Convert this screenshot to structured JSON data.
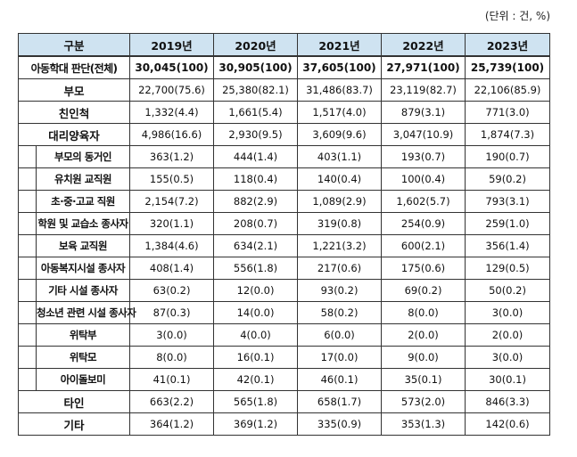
{
  "unit_label": "(단위 : 건, %)",
  "table": {
    "header": [
      "구분",
      "2019년",
      "2020년",
      "2021년",
      "2022년",
      "2023년"
    ],
    "total": {
      "label": "아동학대 판단(전체)",
      "values": [
        "30,045(100)",
        "30,905(100)",
        "37,605(100)",
        "27,971(100)",
        "25,739(100)"
      ]
    },
    "rows": [
      {
        "label": "부모",
        "values": [
          "22,700(75.6)",
          "25,380(82.1)",
          "31,486(83.7)",
          "23,119(82.7)",
          "22,106(85.9)"
        ]
      },
      {
        "label": "친인척",
        "values": [
          "1,332(4.4)",
          "1,661(5.4)",
          "1,517(4.0)",
          "879(3.1)",
          "771(3.0)"
        ]
      },
      {
        "label": "대리양육자",
        "values": [
          "4,986(16.6)",
          "2,930(9.5)",
          "3,609(9.6)",
          "3,047(10.9)",
          "1,874(7.3)"
        ],
        "children": [
          {
            "label": "부모의 동거인",
            "values": [
              "363(1.2)",
              "444(1.4)",
              "403(1.1)",
              "193(0.7)",
              "190(0.7)"
            ]
          },
          {
            "label": "유치원 교직원",
            "values": [
              "155(0.5)",
              "118(0.4)",
              "140(0.4)",
              "100(0.4)",
              "59(0.2)"
            ]
          },
          {
            "label": "초·중·고교 직원",
            "values": [
              "2,154(7.2)",
              "882(2.9)",
              "1,089(2.9)",
              "1,602(5.7)",
              "793(3.1)"
            ]
          },
          {
            "label": "학원 및 교습소 종사자",
            "values": [
              "320(1.1)",
              "208(0.7)",
              "319(0.8)",
              "254(0.9)",
              "259(1.0)"
            ]
          },
          {
            "label": "보육 교직원",
            "values": [
              "1,384(4.6)",
              "634(2.1)",
              "1,221(3.2)",
              "600(2.1)",
              "356(1.4)"
            ]
          },
          {
            "label": "아동복지시설 종사자",
            "values": [
              "408(1.4)",
              "556(1.8)",
              "217(0.6)",
              "175(0.6)",
              "129(0.5)"
            ]
          },
          {
            "label": "기타 시설 종사자",
            "values": [
              "63(0.2)",
              "12(0.0)",
              "93(0.2)",
              "69(0.2)",
              "50(0.2)"
            ]
          },
          {
            "label": "청소년 관련 시설 종사자",
            "values": [
              "87(0.3)",
              "14(0.0)",
              "58(0.2)",
              "8(0.0)",
              "3(0.0)"
            ]
          },
          {
            "label": "위탁부",
            "values": [
              "3(0.0)",
              "4(0.0)",
              "6(0.0)",
              "2(0.0)",
              "2(0.0)"
            ]
          },
          {
            "label": "위탁모",
            "values": [
              "8(0.0)",
              "16(0.1)",
              "17(0.0)",
              "9(0.0)",
              "3(0.0)"
            ]
          },
          {
            "label": "아이돌보미",
            "values": [
              "41(0.1)",
              "42(0.1)",
              "46(0.1)",
              "35(0.1)",
              "30(0.1)"
            ]
          }
        ]
      },
      {
        "label": "타인",
        "values": [
          "663(2.2)",
          "565(1.8)",
          "658(1.7)",
          "573(2.0)",
          "846(3.3)"
        ]
      },
      {
        "label": "기타",
        "values": [
          "364(1.2)",
          "369(1.2)",
          "335(0.9)",
          "353(1.3)",
          "142(0.6)"
        ]
      }
    ]
  }
}
